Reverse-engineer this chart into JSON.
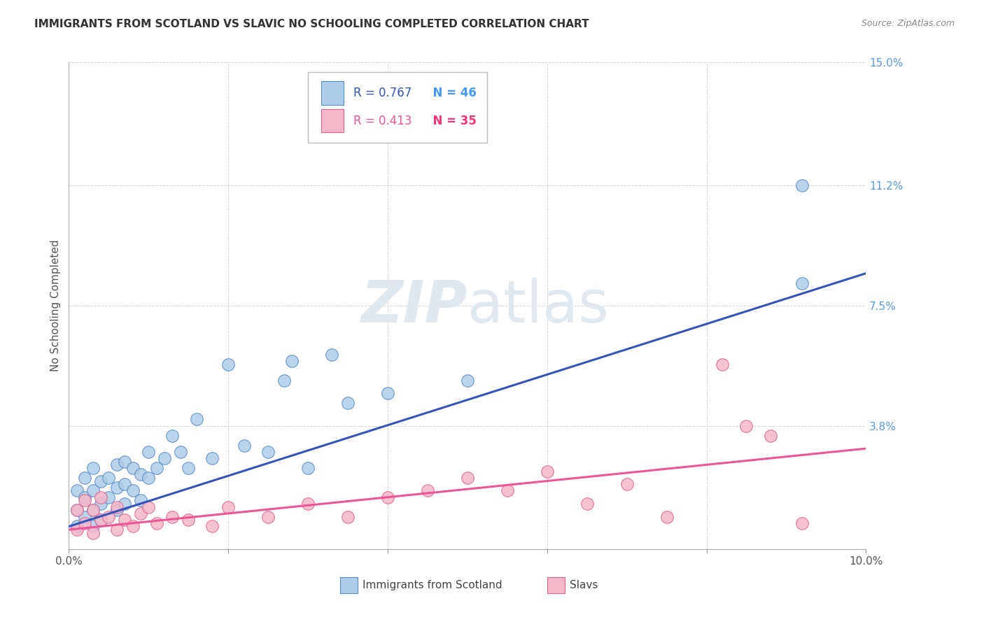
{
  "title": "IMMIGRANTS FROM SCOTLAND VS SLAVIC NO SCHOOLING COMPLETED CORRELATION CHART",
  "source": "Source: ZipAtlas.com",
  "ylabel": "No Schooling Completed",
  "xlim": [
    0.0,
    0.1
  ],
  "ylim": [
    0.0,
    0.15
  ],
  "xtick_positions": [
    0.0,
    0.02,
    0.04,
    0.06,
    0.08,
    0.1
  ],
  "xticklabels": [
    "0.0%",
    "",
    "",
    "",
    "",
    "10.0%"
  ],
  "ytick_positions": [
    0.0,
    0.038,
    0.075,
    0.112,
    0.15
  ],
  "ytick_labels": [
    "",
    "3.8%",
    "7.5%",
    "11.2%",
    "15.0%"
  ],
  "blue_fill": "#AECDE8",
  "blue_edge": "#5588CC",
  "pink_fill": "#F4B8C8",
  "pink_edge": "#E06090",
  "blue_line": "#3355BB",
  "pink_line": "#EE5599",
  "ytick_color": "#5599EE",
  "legend_r_blue_color": "#3355BB",
  "legend_n_blue_color": "#4499FF",
  "legend_r_pink_color": "#EE5599",
  "legend_n_pink_color": "#FF3377",
  "grid_color": "#CCCCCC",
  "watermark_color": "#E0E8F0",
  "blue_line_x0": 0.0,
  "blue_line_y0": 0.007,
  "blue_line_x1": 0.1,
  "blue_line_y1": 0.085,
  "pink_line_x0": 0.0,
  "pink_line_y0": 0.006,
  "pink_line_x1": 0.1,
  "pink_line_y1": 0.031,
  "scotland_x": [
    0.001,
    0.001,
    0.001,
    0.002,
    0.002,
    0.002,
    0.003,
    0.003,
    0.003,
    0.003,
    0.004,
    0.004,
    0.004,
    0.005,
    0.005,
    0.006,
    0.006,
    0.006,
    0.007,
    0.007,
    0.007,
    0.008,
    0.008,
    0.009,
    0.009,
    0.01,
    0.01,
    0.011,
    0.012,
    0.013,
    0.014,
    0.015,
    0.016,
    0.018,
    0.02,
    0.022,
    0.025,
    0.027,
    0.028,
    0.03,
    0.033,
    0.035,
    0.04,
    0.05,
    0.092,
    0.092
  ],
  "scotland_y": [
    0.007,
    0.012,
    0.018,
    0.01,
    0.016,
    0.022,
    0.007,
    0.012,
    0.018,
    0.025,
    0.009,
    0.014,
    0.021,
    0.016,
    0.022,
    0.012,
    0.019,
    0.026,
    0.014,
    0.02,
    0.027,
    0.018,
    0.025,
    0.015,
    0.023,
    0.022,
    0.03,
    0.025,
    0.028,
    0.035,
    0.03,
    0.025,
    0.04,
    0.028,
    0.057,
    0.032,
    0.03,
    0.052,
    0.058,
    0.025,
    0.06,
    0.045,
    0.048,
    0.052,
    0.112,
    0.082
  ],
  "slavs_x": [
    0.001,
    0.001,
    0.002,
    0.002,
    0.003,
    0.003,
    0.004,
    0.004,
    0.005,
    0.006,
    0.006,
    0.007,
    0.008,
    0.009,
    0.01,
    0.011,
    0.013,
    0.015,
    0.018,
    0.02,
    0.025,
    0.03,
    0.035,
    0.04,
    0.045,
    0.05,
    0.055,
    0.06,
    0.065,
    0.07,
    0.075,
    0.082,
    0.085,
    0.088,
    0.092
  ],
  "slavs_y": [
    0.006,
    0.012,
    0.008,
    0.015,
    0.005,
    0.012,
    0.009,
    0.016,
    0.01,
    0.006,
    0.013,
    0.009,
    0.007,
    0.011,
    0.013,
    0.008,
    0.01,
    0.009,
    0.007,
    0.013,
    0.01,
    0.014,
    0.01,
    0.016,
    0.018,
    0.022,
    0.018,
    0.024,
    0.014,
    0.02,
    0.01,
    0.057,
    0.038,
    0.035,
    0.008
  ]
}
